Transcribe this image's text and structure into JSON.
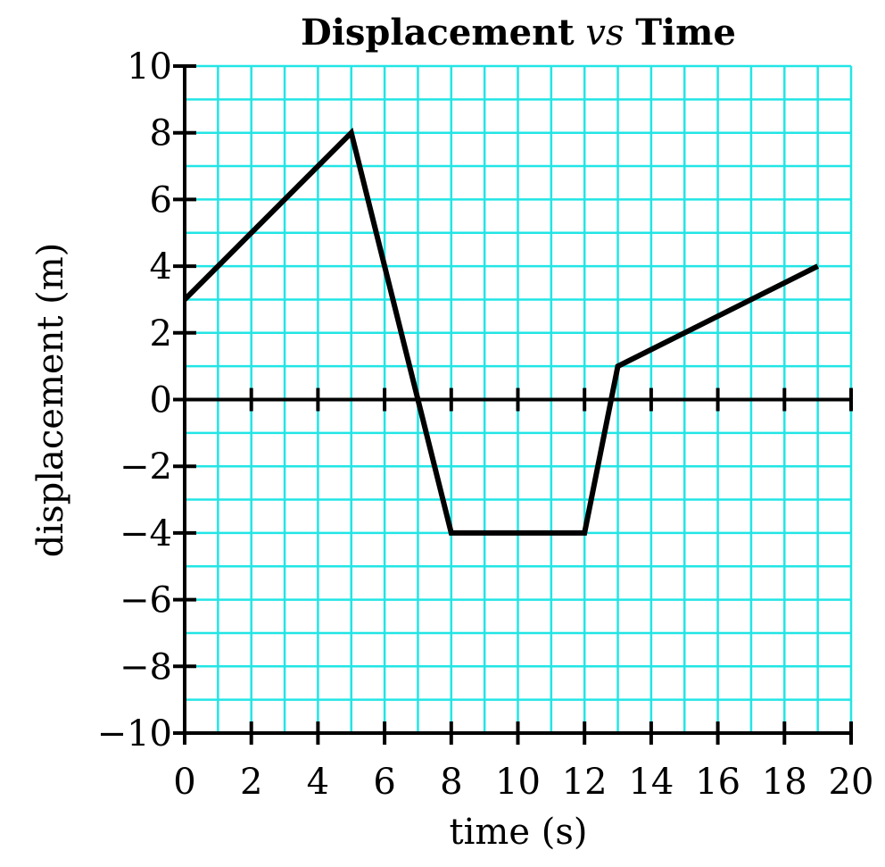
{
  "chart_data": {
    "type": "line",
    "title": {
      "part1": "Displacement",
      "part2": "vs",
      "part3": "Time"
    },
    "xlabel": "time (s)",
    "ylabel": "displacement (m)",
    "xlim": [
      0,
      20
    ],
    "ylim": [
      -10,
      10
    ],
    "x_ticks": [
      0,
      2,
      4,
      6,
      8,
      10,
      12,
      14,
      16,
      18,
      20
    ],
    "y_ticks": [
      10,
      8,
      6,
      4,
      2,
      0,
      -2,
      -4,
      -6,
      -8,
      -10
    ],
    "x_tick_labels": [
      "0",
      "2",
      "4",
      "6",
      "8",
      "10",
      "12",
      "14",
      "16",
      "18",
      "20"
    ],
    "y_tick_labels": [
      "10",
      "8",
      "6",
      "4",
      "2",
      "0",
      "−2",
      "−4",
      "−6",
      "−8",
      "−10"
    ],
    "grid": true,
    "grid_step": 1,
    "grid_color": "#22e5e5",
    "line_color": "#000000",
    "series": [
      {
        "x": [
          0,
          5,
          8,
          12,
          13,
          19
        ],
        "y": [
          3,
          8,
          -4,
          -4,
          1,
          4
        ]
      }
    ]
  }
}
